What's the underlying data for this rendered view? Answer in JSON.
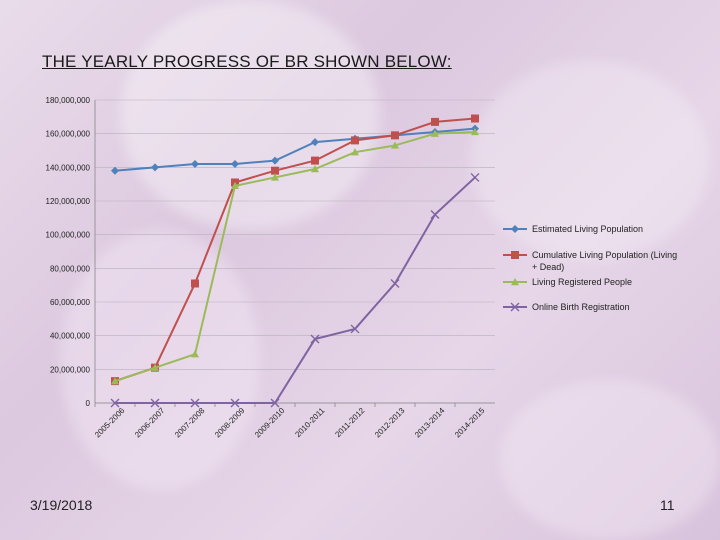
{
  "slide": {
    "title": "THE YEARLY PROGRESS OF BR SHOWN BELOW:",
    "date": "3/19/2018",
    "page_number": "11"
  },
  "colors": {
    "estimated": "#4f81bd",
    "cumulative": "#c0504d",
    "registered": "#9bbb59",
    "online": "#8064a2"
  },
  "chart_data": {
    "type": "line",
    "categories": [
      "2005-2006",
      "2006-2007",
      "2007-2008",
      "2008-2009",
      "2009-2010",
      "2010-2011",
      "2011-2012",
      "2012-2013",
      "2013-2014",
      "2014-2015"
    ],
    "ylim": [
      0,
      180000000
    ],
    "yticks": [
      "0",
      "20,000,000",
      "40,000,000",
      "60,000,000",
      "80,000,000",
      "100,000,000",
      "120,000,000",
      "140,000,000",
      "160,000,000",
      "180,000,000"
    ],
    "grid": true,
    "legend_position": "right",
    "series": [
      {
        "name": "Estimated Living Population",
        "key": "estimated",
        "marker": "diamond",
        "values": [
          138000000,
          140000000,
          142000000,
          142000000,
          144000000,
          155000000,
          157000000,
          159000000,
          161000000,
          163000000
        ]
      },
      {
        "name": "Cumulative Living Population (Living + Dead)",
        "key": "cumulative",
        "marker": "square",
        "values": [
          13000000,
          21000000,
          71000000,
          131000000,
          138000000,
          144000000,
          156000000,
          159000000,
          167000000,
          169000000
        ]
      },
      {
        "name": "Living Registered People",
        "key": "registered",
        "marker": "triangle",
        "values": [
          13000000,
          21000000,
          29000000,
          129000000,
          134000000,
          139000000,
          149000000,
          153000000,
          160000000,
          161000000
        ]
      },
      {
        "name": "Online Birth Registration",
        "key": "online",
        "marker": "x",
        "values": [
          0,
          0,
          0,
          0,
          0,
          38000000,
          44000000,
          71000000,
          112000000,
          134000000
        ]
      }
    ]
  }
}
